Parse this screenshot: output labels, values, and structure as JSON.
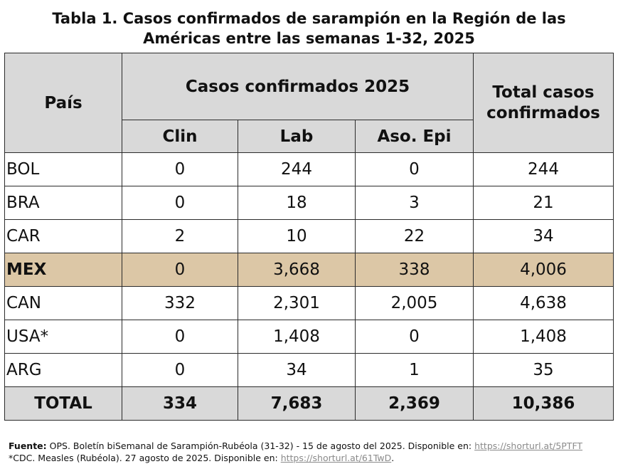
{
  "title": {
    "line1": "Tabla 1. Casos confirmados de sarampión en la Región de las",
    "line2": "Américas entre las semanas 1-32, 2025"
  },
  "table": {
    "header": {
      "country": "País",
      "group": "Casos confirmados 2025",
      "total": "Total casos confirmados",
      "sub": [
        "Clin",
        "Lab",
        "Aso. Epi"
      ]
    },
    "rows": [
      {
        "country": "BOL",
        "clin": "0",
        "lab": "244",
        "epi": "0",
        "total": "244"
      },
      {
        "country": "BRA",
        "clin": "0",
        "lab": "18",
        "epi": "3",
        "total": "21"
      },
      {
        "country": "CAR",
        "clin": "2",
        "lab": "10",
        "epi": "22",
        "total": "34"
      },
      {
        "country": "MEX",
        "clin": "0",
        "lab": "3,668",
        "epi": "338",
        "total": "4,006"
      },
      {
        "country": "CAN",
        "clin": "332",
        "lab": "2,301",
        "epi": "2,005",
        "total": "4,638"
      },
      {
        "country": "USA*",
        "clin": "0",
        "lab": "1,408",
        "epi": "0",
        "total": "1,408"
      },
      {
        "country": "ARG",
        "clin": "0",
        "lab": "34",
        "epi": "1",
        "total": "35"
      }
    ],
    "totals": {
      "country": "TOTAL",
      "clin": "334",
      "lab": "7,683",
      "epi": "2,369",
      "total": "10,386"
    },
    "highlight_color": "#dcc7a6",
    "header_color": "#d9d9d9"
  },
  "footer": {
    "source_label": "Fuente:",
    "source_text": " OPS. Boletín biSemanal de Sarampión-Rubéola (31-32) - 15 de agosto del 2025. Disponible en: ",
    "source_link": "https://shorturl.at/5PTFT",
    "note_text": "*CDC. Measles (Rubéola). 27 agosto de 2025. Disponible en: ",
    "note_link": "https://shorturl.at/61TwD",
    "note_end": "."
  }
}
